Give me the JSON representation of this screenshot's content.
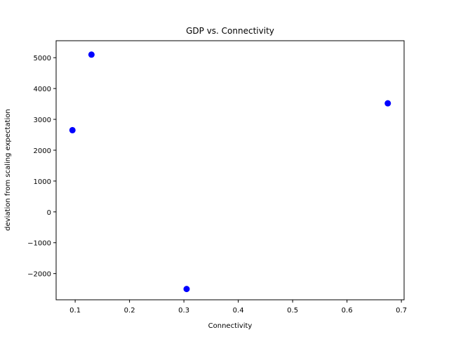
{
  "chart_data": {
    "type": "scatter",
    "title": "GDP vs. Connectivity",
    "xlabel": "Connectivity",
    "ylabel": "deviation from scaling expectation",
    "xlim": [
      0.065,
      0.705
    ],
    "ylim": [
      -2850,
      5550
    ],
    "x_ticks": [
      0.1,
      0.2,
      0.3,
      0.4,
      0.5,
      0.6,
      0.7
    ],
    "x_tick_labels": [
      "0.1",
      "0.2",
      "0.3",
      "0.4",
      "0.5",
      "0.6",
      "0.7"
    ],
    "y_ticks": [
      -2000,
      -1000,
      0,
      1000,
      2000,
      3000,
      4000,
      5000
    ],
    "y_tick_labels": [
      "−2000",
      "−1000",
      "0",
      "1000",
      "2000",
      "3000",
      "4000",
      "5000"
    ],
    "grid": false,
    "point_color": "#0000ff",
    "points": [
      {
        "x": 0.095,
        "y": 2650
      },
      {
        "x": 0.13,
        "y": 5100
      },
      {
        "x": 0.305,
        "y": -2500
      },
      {
        "x": 0.675,
        "y": 3520
      }
    ]
  }
}
